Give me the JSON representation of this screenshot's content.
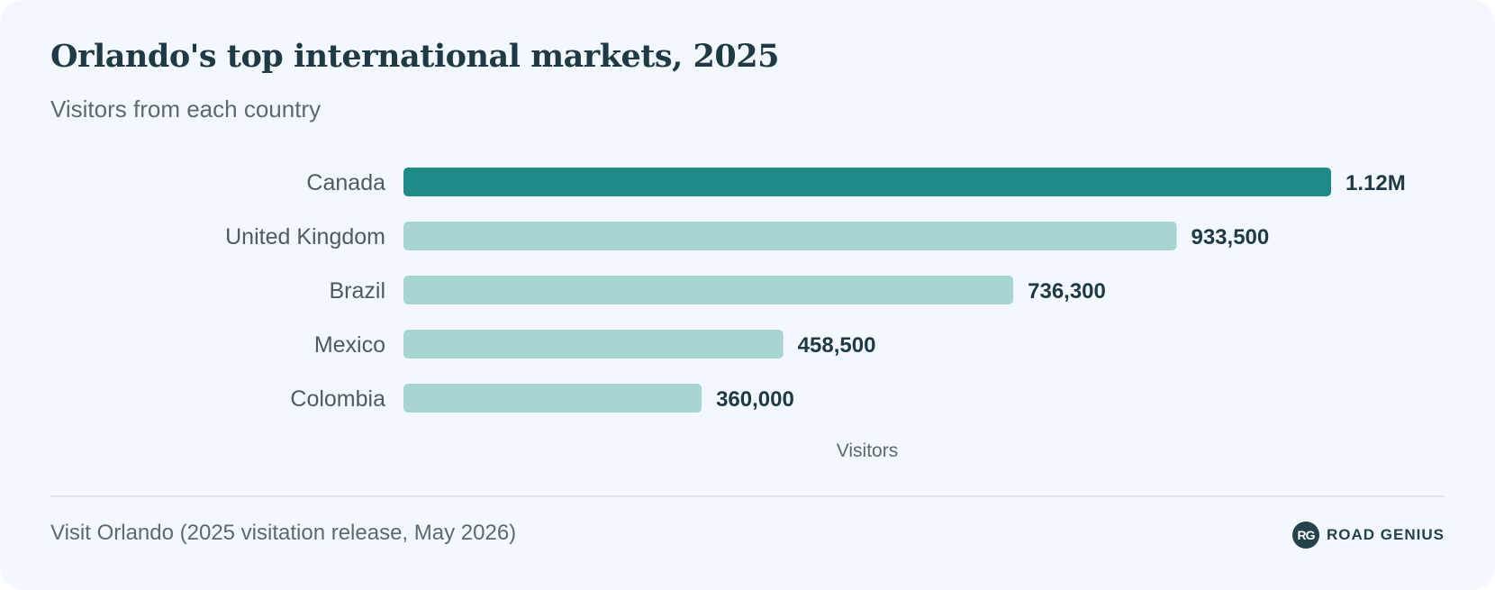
{
  "header": {
    "title": "Orlando's top international markets, 2025",
    "subtitle": "Visitors from each country"
  },
  "chart_data": {
    "type": "bar",
    "orientation": "horizontal",
    "categories": [
      "Canada",
      "United Kingdom",
      "Brazil",
      "Mexico",
      "Colombia"
    ],
    "values": [
      1120000,
      933500,
      736300,
      458500,
      360000
    ],
    "value_labels": [
      "1.12M",
      "933,500",
      "736,300",
      "458,500",
      "360,000"
    ],
    "xlabel": "Visitors",
    "ylabel": "",
    "xlim": [
      0,
      1120000
    ],
    "grid": false,
    "highlight_index": 0,
    "colors": {
      "highlight": "#1f8a87",
      "default": "#a8d5d2"
    }
  },
  "footer": {
    "source": "Visit Orlando (2025 visitation release, May 2026)",
    "brand_badge": "RG",
    "brand_name": "ROAD GENIUS"
  }
}
